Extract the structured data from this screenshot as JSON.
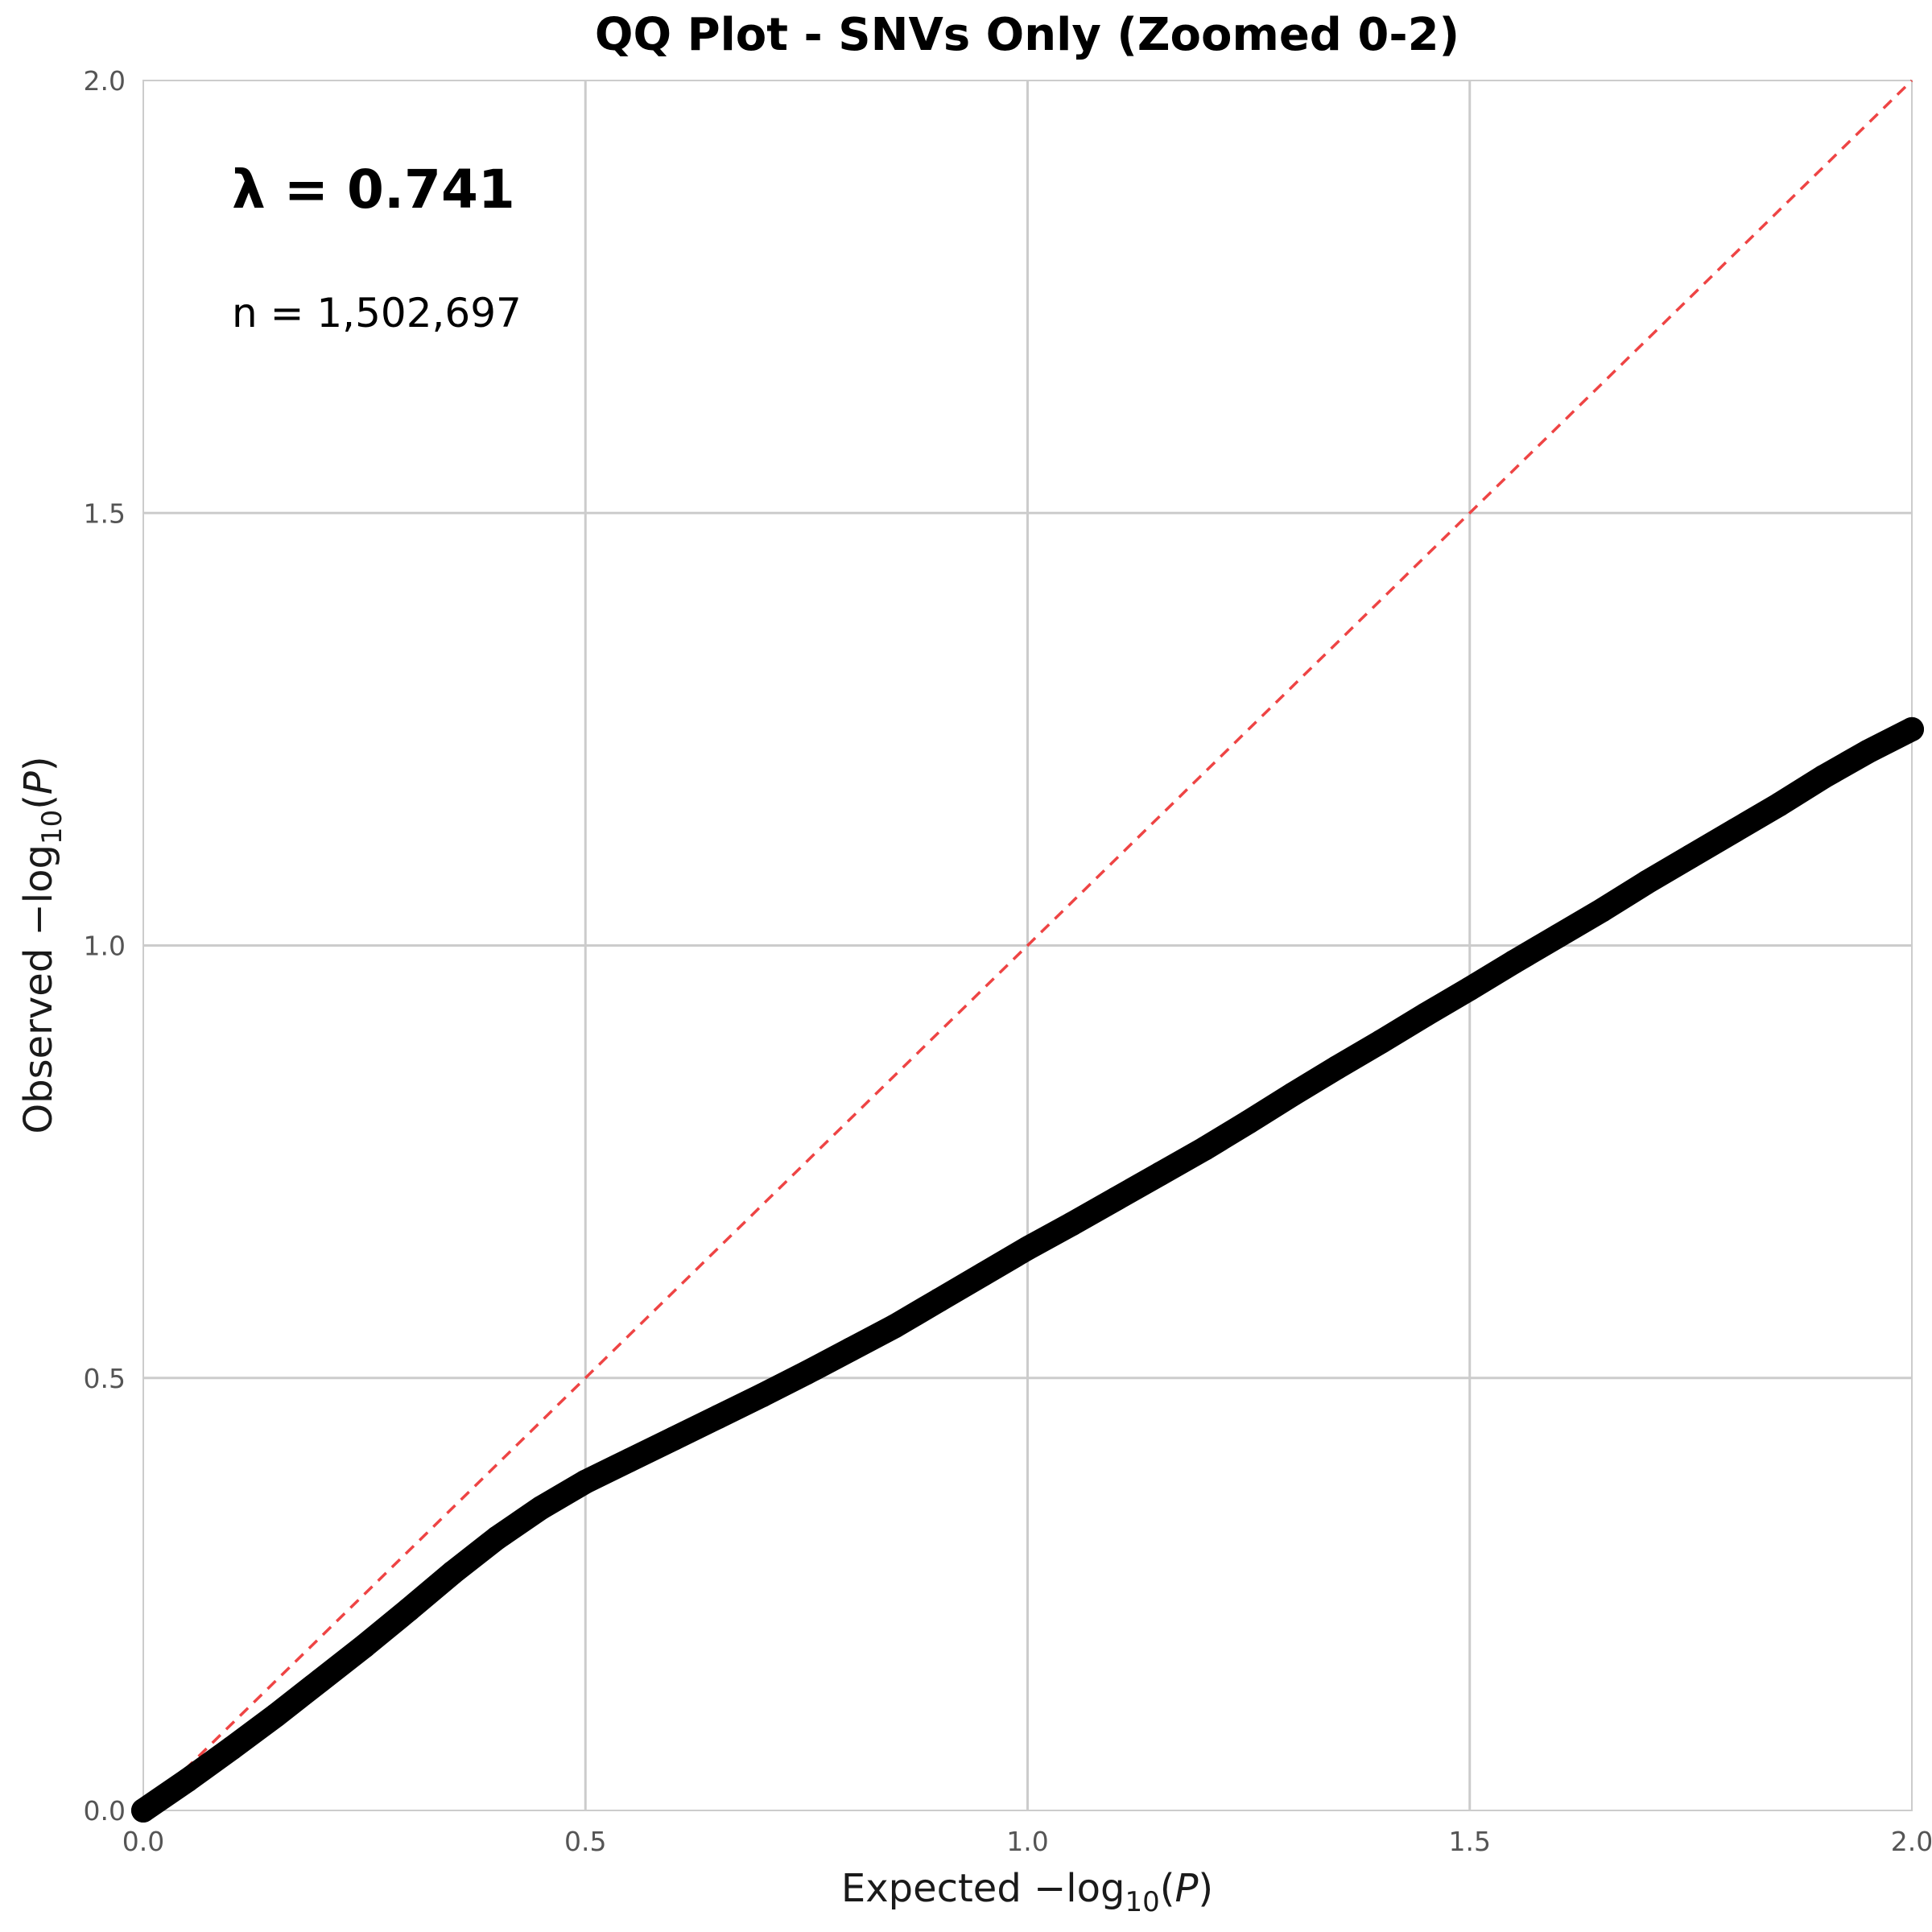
{
  "chart_data": {
    "type": "scatter",
    "title": "QQ Plot - SNVs Only (Zoomed 0-2)",
    "xlabel": {
      "prefix": "Expected −log",
      "sub": "10",
      "open": "(",
      "var": "P",
      "close": ")"
    },
    "ylabel": {
      "prefix": "Observed −log",
      "sub": "10",
      "open": "(",
      "var": "P",
      "close": ")"
    },
    "xlim": [
      0,
      2
    ],
    "ylim": [
      0,
      2
    ],
    "x_ticks": [
      0.0,
      0.5,
      1.0,
      1.5,
      2.0
    ],
    "y_ticks": [
      0.0,
      0.5,
      1.0,
      1.5,
      2.0
    ],
    "x_tick_labels": [
      "0.0",
      "0.5",
      "1.0",
      "1.5",
      "2.0"
    ],
    "y_tick_labels": [
      "0.0",
      "0.5",
      "1.0",
      "1.5",
      "2.0"
    ],
    "grid": true,
    "annotations": {
      "lambda": "λ = 0.741",
      "n": "n = 1,502,697"
    },
    "reference_line": {
      "style": "dashed",
      "color": "#ee4444",
      "x": [
        0,
        2
      ],
      "y": [
        0,
        2
      ]
    },
    "series": [
      {
        "color": "#000000",
        "x": [
          0.0,
          0.05,
          0.1,
          0.15,
          0.2,
          0.25,
          0.3,
          0.35,
          0.4,
          0.45,
          0.5,
          0.55,
          0.6,
          0.65,
          0.7,
          0.75,
          0.8,
          0.85,
          0.9,
          0.95,
          1.0,
          1.05,
          1.1,
          1.15,
          1.2,
          1.25,
          1.3,
          1.35,
          1.4,
          1.45,
          1.5,
          1.55,
          1.6,
          1.65,
          1.7,
          1.75,
          1.8,
          1.85,
          1.9,
          1.95,
          2.0
        ],
        "y": [
          0.0,
          0.035,
          0.072,
          0.11,
          0.15,
          0.19,
          0.232,
          0.275,
          0.315,
          0.35,
          0.38,
          0.405,
          0.43,
          0.455,
          0.48,
          0.506,
          0.533,
          0.56,
          0.59,
          0.62,
          0.65,
          0.678,
          0.707,
          0.736,
          0.765,
          0.796,
          0.828,
          0.859,
          0.889,
          0.92,
          0.95,
          0.981,
          1.011,
          1.041,
          1.073,
          1.103,
          1.133,
          1.163,
          1.195,
          1.224,
          1.25
        ]
      }
    ]
  }
}
